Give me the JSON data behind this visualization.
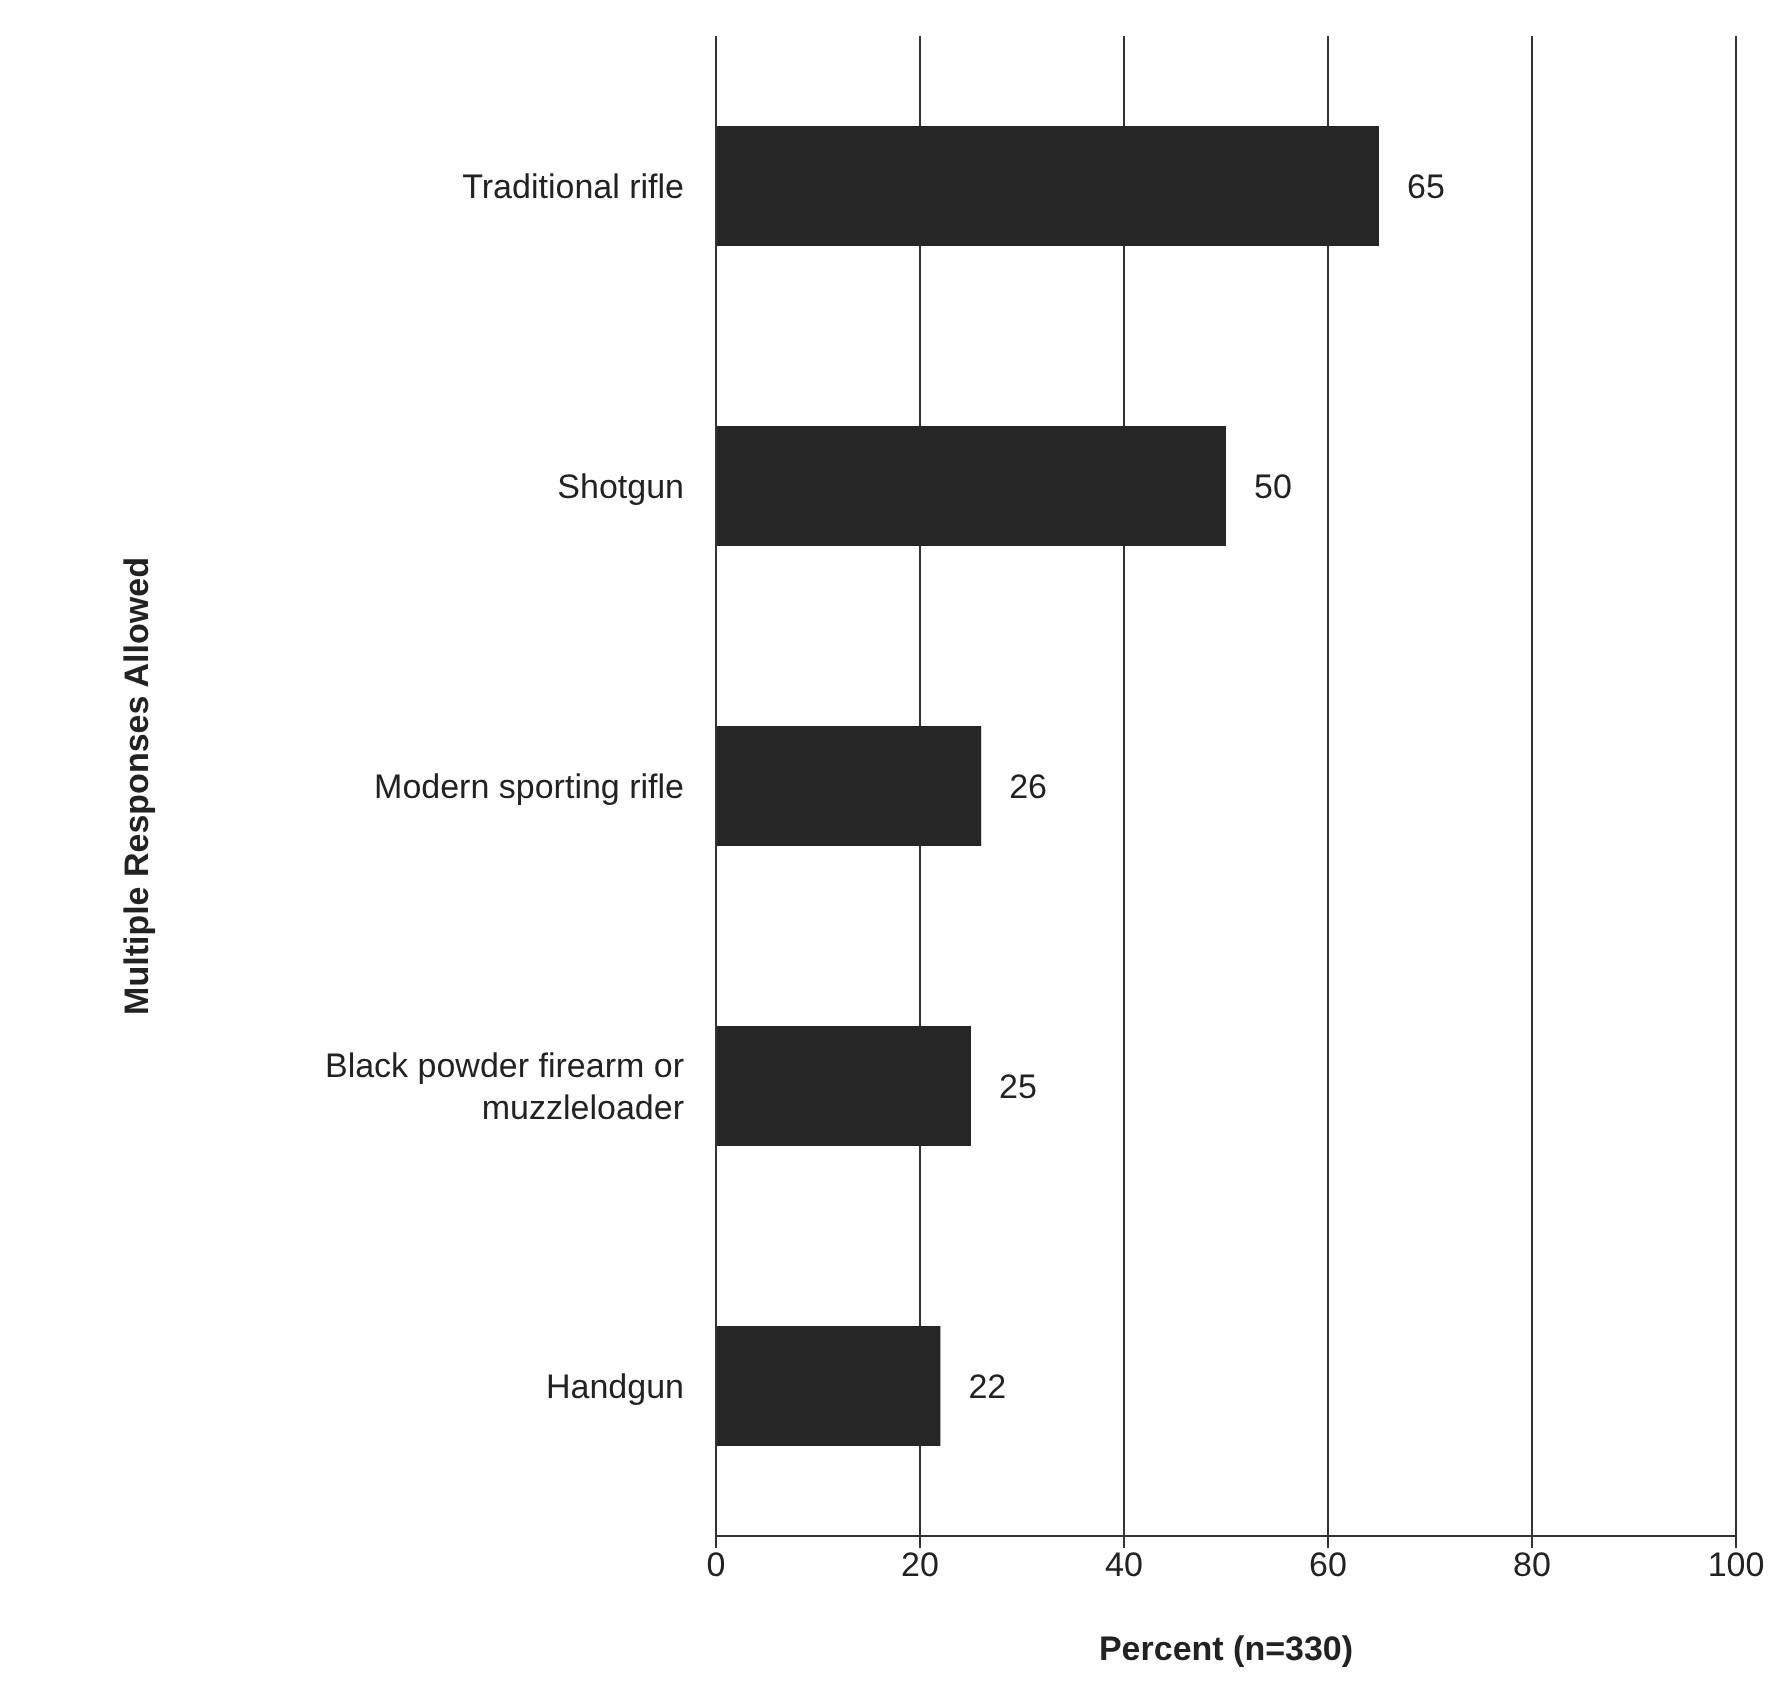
{
  "chart_data": {
    "type": "bar",
    "orientation": "horizontal",
    "categories": [
      "Traditional rifle",
      "Shotgun",
      "Modern sporting rifle",
      "Black powder firearm or muzzleloader",
      "Handgun"
    ],
    "values": [
      65,
      50,
      26,
      25,
      22
    ],
    "color": "#262626",
    "xlim": [
      0,
      100
    ],
    "xticks": [
      0,
      20,
      40,
      60,
      80,
      100
    ],
    "grid": "x",
    "data_labels": true,
    "xlabel": "Percent (n=330)",
    "ylabel": "Multiple Responses Allowed"
  }
}
